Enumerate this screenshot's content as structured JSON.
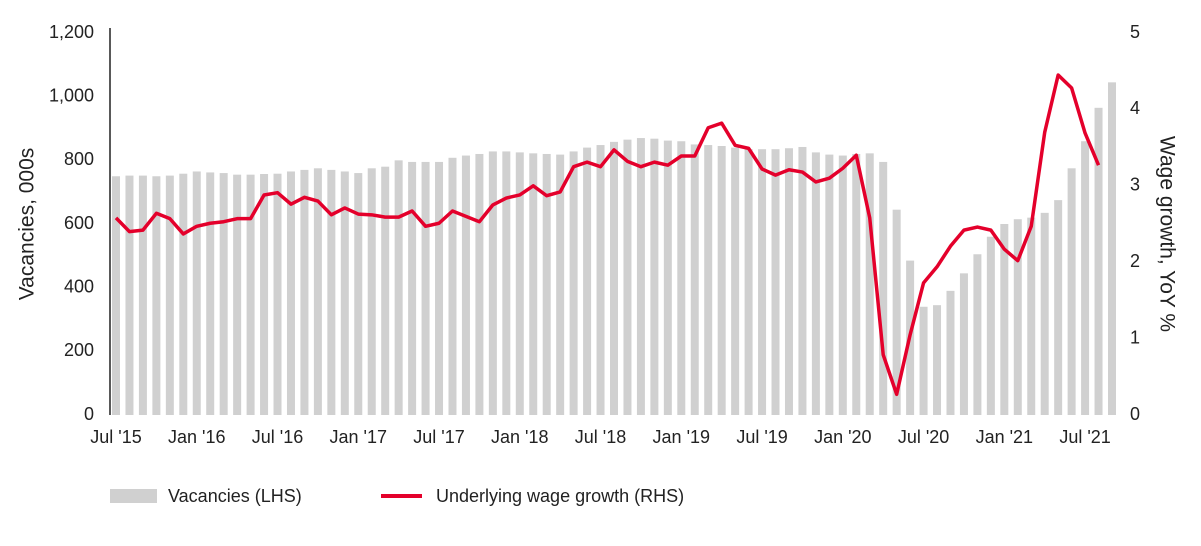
{
  "chart_data": {
    "type": "bar",
    "categories": [
      "Jul '15",
      null,
      null,
      null,
      null,
      null,
      "Jan '16",
      null,
      null,
      null,
      null,
      null,
      "Jul '16",
      null,
      null,
      null,
      null,
      null,
      "Jan '17",
      null,
      null,
      null,
      null,
      null,
      "Jul '17",
      null,
      null,
      null,
      null,
      null,
      "Jan '18",
      null,
      null,
      null,
      null,
      null,
      "Jul '18",
      null,
      null,
      null,
      null,
      null,
      "Jan '19",
      null,
      null,
      null,
      null,
      null,
      "Jul '19",
      null,
      null,
      null,
      null,
      null,
      "Jan '20",
      null,
      null,
      null,
      null,
      null,
      "Jul '20",
      null,
      null,
      null,
      null,
      null,
      "Jan '21",
      null,
      null,
      null,
      null,
      null,
      "Jul '21",
      null,
      null
    ],
    "series": [
      {
        "name": "Vacancies (LHS)",
        "color": "#d0d0d0",
        "type": "bar",
        "values": [
          750,
          752,
          752,
          750,
          752,
          758,
          765,
          762,
          760,
          755,
          755,
          757,
          758,
          765,
          770,
          775,
          770,
          765,
          760,
          775,
          780,
          800,
          795,
          795,
          795,
          808,
          815,
          820,
          828,
          828,
          825,
          822,
          820,
          818,
          828,
          840,
          848,
          858,
          865,
          870,
          868,
          862,
          860,
          850,
          848,
          845,
          840,
          835,
          835,
          835,
          838,
          842,
          825,
          818,
          815,
          820,
          822,
          795,
          645,
          485,
          340,
          345,
          390,
          445,
          505,
          560,
          600,
          615,
          620,
          635,
          675,
          775,
          860,
          965,
          1045
        ]
      },
      {
        "name": "Underlying wage growth (RHS)",
        "color": "#e4002b",
        "type": "line",
        "axis": "y2",
        "values": [
          2.58,
          2.4,
          2.42,
          2.64,
          2.57,
          2.37,
          2.47,
          2.51,
          2.53,
          2.57,
          2.57,
          2.88,
          2.91,
          2.76,
          2.85,
          2.8,
          2.62,
          2.71,
          2.63,
          2.62,
          2.59,
          2.59,
          2.67,
          2.47,
          2.51,
          2.67,
          2.6,
          2.53,
          2.75,
          2.84,
          2.88,
          3.0,
          2.87,
          2.92,
          3.25,
          3.31,
          3.25,
          3.47,
          3.32,
          3.25,
          3.31,
          3.27,
          3.39,
          3.39,
          3.76,
          3.82,
          3.53,
          3.49,
          3.22,
          3.14,
          3.21,
          3.18,
          3.05,
          3.1,
          3.23,
          3.4,
          2.58,
          0.79,
          0.27,
          1.05,
          1.73,
          1.94,
          2.21,
          2.42,
          2.46,
          2.42,
          2.17,
          2.02,
          2.47,
          3.7,
          4.45,
          4.28,
          3.69,
          3.27,
          null
        ]
      }
    ],
    "ylabel": "Vacancies, 000s",
    "y2label": "Wage growth, YoY %",
    "ylim": [
      0,
      1200
    ],
    "yticks": [
      0,
      200,
      400,
      600,
      800,
      {
        "value": 1000,
        "label": "1,000"
      },
      {
        "value": 1200,
        "label": "1,200"
      }
    ],
    "y2lim": [
      0,
      5
    ],
    "y2ticks": [
      0,
      1,
      2,
      3,
      4,
      5
    ]
  }
}
